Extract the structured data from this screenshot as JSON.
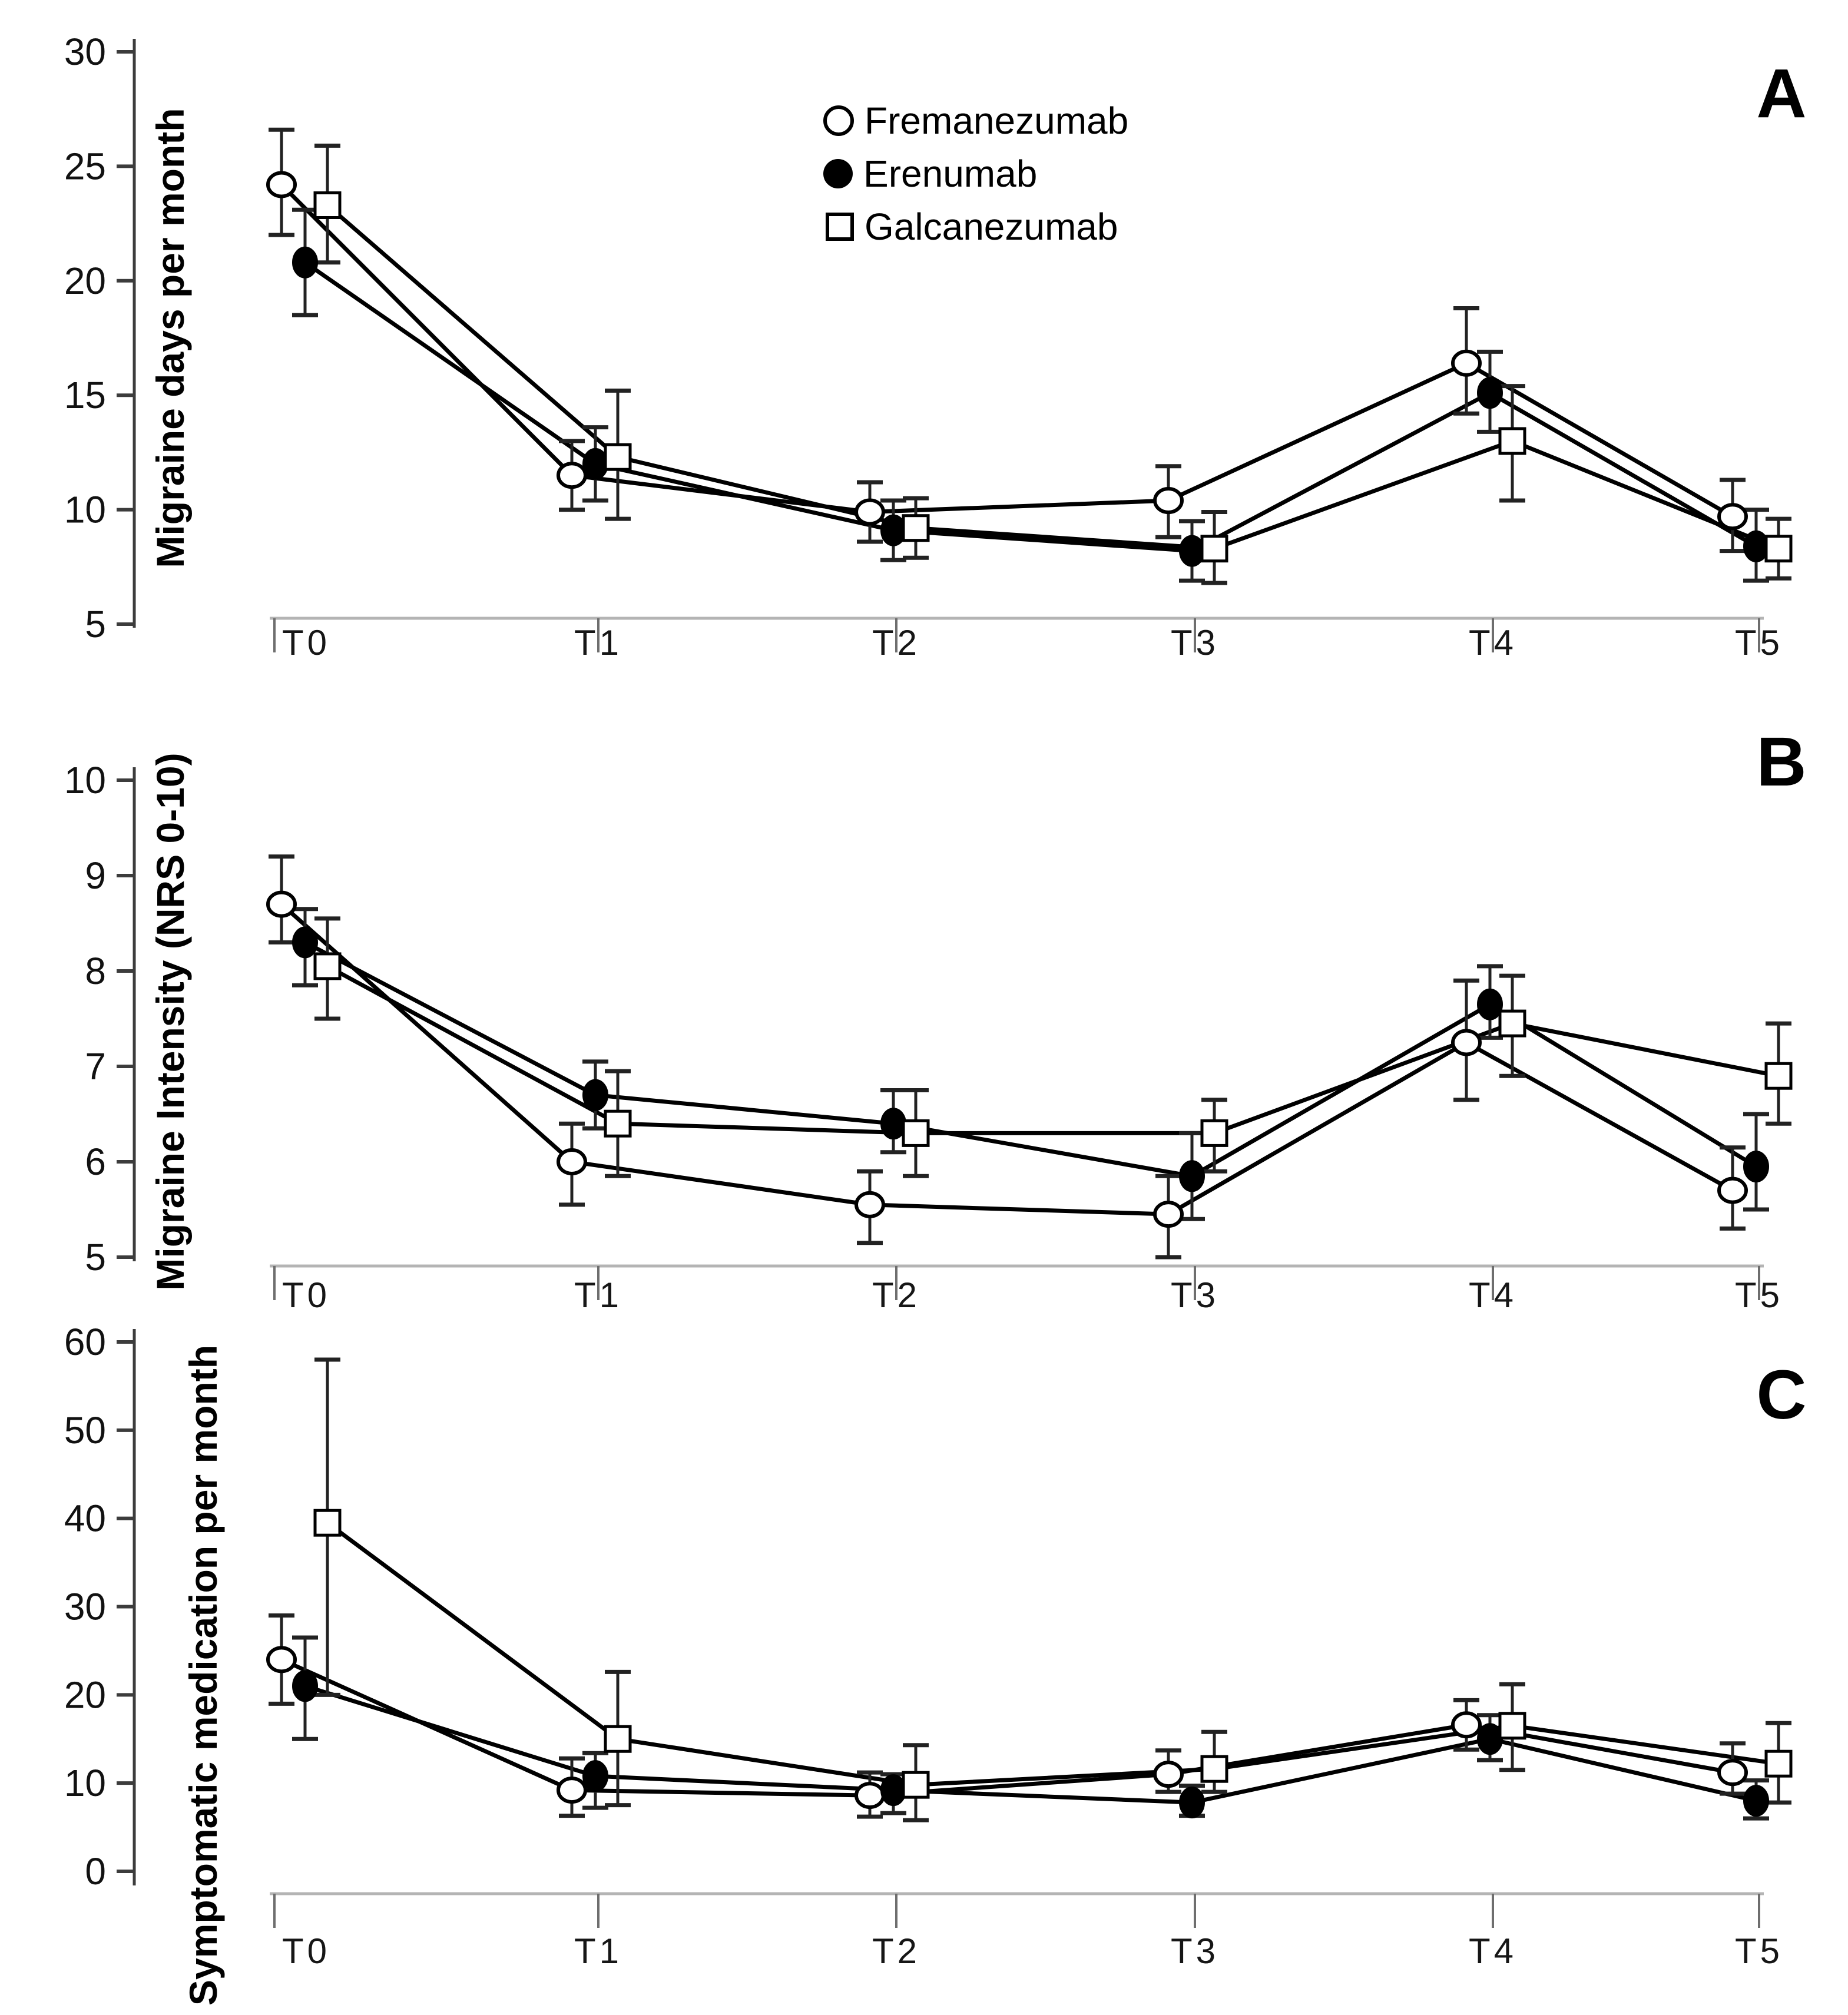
{
  "figure": {
    "description": "Three stacked line panels comparing anti-CGRP monoclonal antibodies across follow-up timepoints",
    "panel_letters": [
      "A",
      "B",
      "C"
    ]
  },
  "legend": {
    "items": [
      {
        "label": "Fremanezumab",
        "marker": "open-circle"
      },
      {
        "label": "Erenumab",
        "marker": "filled-circle"
      },
      {
        "label": "Galcanezumab",
        "marker": "open-square"
      }
    ]
  },
  "colors": {
    "line": "#000000",
    "marker_open_fill": "#ffffff",
    "marker_filled_fill": "#000000",
    "axis": "#3c3c3c",
    "baseline": "#b4b4b4",
    "tick_down": "#6e6e6e",
    "error_bar": "#222222",
    "text": "#000000",
    "background": "#ffffff"
  },
  "chart_data": [
    {
      "type": "line",
      "panel_letter": "A",
      "title": "",
      "xlabel": "",
      "ylabel": "Migraine days per month",
      "yticks": [
        30,
        25,
        20,
        15,
        10,
        5
      ],
      "ymin": 5,
      "ymax": 30,
      "grid": false,
      "legend_position": "top-center",
      "x_categories": [
        "T0",
        "T1",
        "T2",
        "T3",
        "T4",
        "T5"
      ],
      "series": [
        {
          "name": "Fremanezumab",
          "marker": "open-circle",
          "values": [
            24.2,
            11.5,
            9.9,
            10.4,
            16.4,
            9.7
          ],
          "err_low": [
            22.0,
            10.0,
            8.6,
            8.8,
            14.2,
            8.2
          ],
          "err_high": [
            26.6,
            13.0,
            11.2,
            11.9,
            18.8,
            11.3
          ]
        },
        {
          "name": "Erenumab",
          "marker": "filled-circle",
          "values": [
            20.8,
            12.0,
            9.1,
            8.2,
            15.1,
            8.4
          ],
          "err_low": [
            18.5,
            10.4,
            7.8,
            6.9,
            13.4,
            6.9
          ],
          "err_high": [
            23.1,
            13.6,
            10.4,
            9.5,
            16.9,
            10.0
          ]
        },
        {
          "name": "Galcanezumab",
          "marker": "open-square",
          "values": [
            23.3,
            12.3,
            9.2,
            8.3,
            13.0,
            8.3
          ],
          "err_low": [
            20.8,
            9.6,
            7.9,
            6.8,
            10.4,
            7.0
          ],
          "err_high": [
            25.9,
            15.2,
            10.5,
            9.9,
            15.4,
            9.6
          ]
        }
      ]
    },
    {
      "type": "line",
      "panel_letter": "B",
      "title": "",
      "xlabel": "",
      "ylabel": "Migraine Intensity (NRS 0-10)",
      "yticks": [
        10,
        9,
        8,
        7,
        6,
        5
      ],
      "ymin": 5,
      "ymax": 10,
      "grid": false,
      "x_categories": [
        "T0",
        "T1",
        "T2",
        "T3",
        "T4",
        "T5"
      ],
      "series": [
        {
          "name": "Fremanezumab",
          "marker": "open-circle",
          "values": [
            8.7,
            6.0,
            5.55,
            5.45,
            7.25,
            5.7
          ],
          "err_low": [
            8.3,
            5.55,
            5.15,
            5.0,
            6.65,
            5.3
          ],
          "err_high": [
            9.2,
            6.4,
            5.9,
            5.85,
            7.9,
            6.15
          ]
        },
        {
          "name": "Erenumab",
          "marker": "filled-circle",
          "values": [
            8.3,
            6.7,
            6.4,
            5.85,
            7.65,
            5.95
          ],
          "err_low": [
            7.85,
            6.35,
            6.1,
            5.4,
            7.3,
            5.5
          ],
          "err_high": [
            8.65,
            7.05,
            6.75,
            6.3,
            8.05,
            6.5
          ]
        },
        {
          "name": "Galcanezumab",
          "marker": "open-square",
          "values": [
            8.05,
            6.4,
            6.3,
            6.3,
            7.45,
            6.9
          ],
          "err_low": [
            7.5,
            5.85,
            5.85,
            5.9,
            6.9,
            6.4
          ],
          "err_high": [
            8.55,
            6.95,
            6.75,
            6.65,
            7.95,
            7.45
          ]
        }
      ]
    },
    {
      "type": "line",
      "panel_letter": "C",
      "title": "",
      "xlabel": "",
      "ylabel": "Symptomatic medication per month",
      "yticks": [
        60,
        50,
        40,
        30,
        20,
        10,
        0
      ],
      "ymin": 0,
      "ymax": 60,
      "grid": false,
      "x_categories": [
        "T0",
        "T1",
        "T2",
        "T3",
        "T4",
        "T5"
      ],
      "series": [
        {
          "name": "Fremanezumab",
          "marker": "open-circle",
          "values": [
            24,
            9.2,
            8.6,
            11.0,
            16.6,
            11.2
          ],
          "err_low": [
            19,
            6.3,
            6.2,
            9.0,
            13.8,
            8.8
          ],
          "err_high": [
            29,
            12.8,
            11.2,
            13.7,
            19.4,
            14.5
          ]
        },
        {
          "name": "Erenumab",
          "marker": "filled-circle",
          "values": [
            21,
            10.8,
            9.2,
            7.8,
            15.0,
            8.0
          ],
          "err_low": [
            15,
            7.2,
            6.6,
            6.3,
            12.6,
            6.0
          ],
          "err_high": [
            26.5,
            13.4,
            11.0,
            9.7,
            17.7,
            10.3
          ]
        },
        {
          "name": "Galcanezumab",
          "marker": "open-square",
          "values": [
            39.5,
            15.0,
            9.8,
            11.6,
            16.5,
            12.2
          ],
          "err_low": [
            20,
            7.5,
            5.8,
            9.0,
            11.5,
            7.8
          ],
          "err_high": [
            58,
            22.6,
            14.3,
            15.8,
            21.2,
            16.8
          ]
        }
      ]
    }
  ]
}
